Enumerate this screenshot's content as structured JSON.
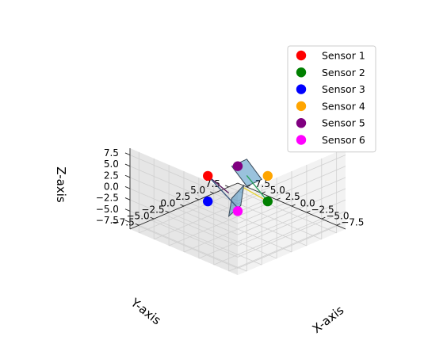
{
  "chart_data": {
    "type": "scatter",
    "projection": "3d",
    "title": "",
    "xlabel": "X-axis",
    "ylabel": "Y-axis",
    "zlabel": "Z-axis",
    "xlim": [
      -9,
      9
    ],
    "ylim": [
      -9,
      9
    ],
    "zlim": [
      -9,
      9
    ],
    "xticks": [
      "−7.5",
      "−5.0",
      "−2.5",
      "0.0",
      "2.5",
      "5.0",
      "7.5"
    ],
    "yticks": [
      "−7.5",
      "−5.0",
      "−2.5",
      "0.0",
      "2.5",
      "5.0",
      "7.5"
    ],
    "zticks": [
      "−7.5",
      "−5.0",
      "−2.5",
      "0.0",
      "2.5",
      "5.0",
      "7.5"
    ],
    "grid": true,
    "legend_position": "top-right",
    "series": [
      {
        "name": "Sensor 1",
        "color": "#ff0000",
        "x": 5.0,
        "y": 0.0,
        "z": 0.0
      },
      {
        "name": "Sensor 2",
        "color": "#008000",
        "x": -5.0,
        "y": 0.0,
        "z": 0.0
      },
      {
        "name": "Sensor 3",
        "color": "#0000ff",
        "x": 0.0,
        "y": -5.0,
        "z": 0.0
      },
      {
        "name": "Sensor 4",
        "color": "#ffa500",
        "x": 0.0,
        "y": 5.0,
        "z": 0.0
      },
      {
        "name": "Sensor 5",
        "color": "#800080",
        "x": 0.0,
        "y": 0.0,
        "z": 5.0
      },
      {
        "name": "Sensor 6",
        "color": "#ff00ff",
        "x": 0.0,
        "y": 0.0,
        "z": -5.0
      }
    ],
    "segments": [
      {
        "color": "#2ca25f",
        "from": [
          -5.0,
          0.0,
          0.0
        ],
        "to": [
          0.5,
          2.0,
          1.5
        ]
      },
      {
        "color": "#e5d33a",
        "from": [
          -5.0,
          0.0,
          0.0
        ],
        "to": [
          1.0,
          2.0,
          -1.5
        ]
      },
      {
        "color": "#5b1a60",
        "from": [
          5.0,
          0.0,
          0.0
        ],
        "to": [
          -1.0,
          -2.5,
          1.0
        ]
      },
      {
        "color": "#3e5a80",
        "from": [
          5.0,
          0.0,
          0.0
        ],
        "to": [
          -2.0,
          -2.0,
          -2.0
        ]
      }
    ],
    "surfaces": [
      {
        "color": "#1f77b4",
        "vertices": [
          [
            1.5,
            3.0,
            4.0
          ],
          [
            -1.5,
            2.5,
            1.5
          ],
          [
            1.5,
            3.0,
            -2.0
          ],
          [
            4.0,
            3.0,
            1.0
          ]
        ]
      },
      {
        "color": "#1f77b4",
        "vertices": [
          [
            -2.5,
            -1.5,
            3.0
          ],
          [
            -4.0,
            -3.5,
            0.5
          ],
          [
            -2.0,
            -3.5,
            -3.0
          ],
          [
            -0.5,
            -1.5,
            -1.0
          ]
        ]
      }
    ]
  }
}
